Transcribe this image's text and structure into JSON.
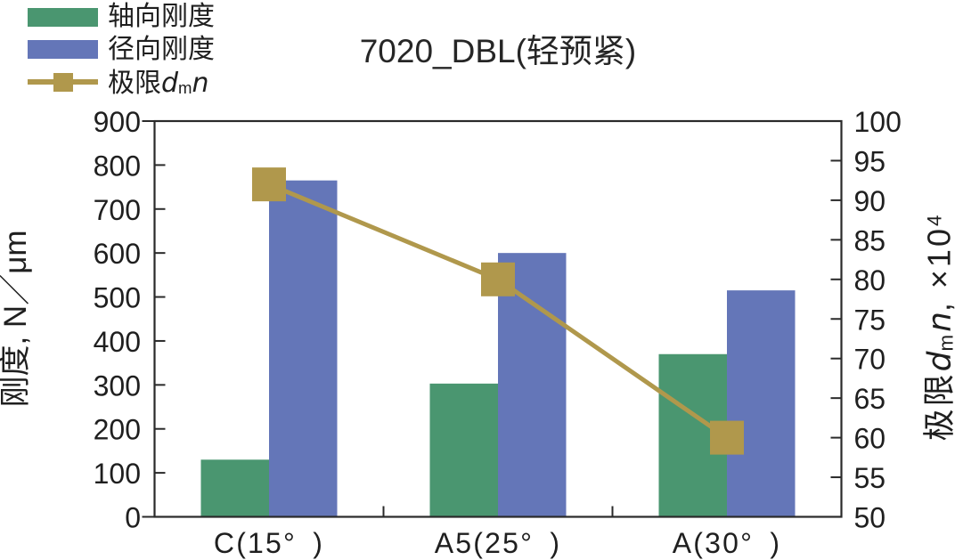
{
  "title": "7020_DBL(轻预紧)",
  "legend": {
    "items": [
      {
        "label": "轴向刚度",
        "swatch": "green-bar"
      },
      {
        "label": "径向刚度",
        "swatch": "blue-bar"
      },
      {
        "swatch": "olive-line-square-marker",
        "label_parts": {
          "prefix": "极限",
          "var_d": "d",
          "sub_m": "m",
          "var_n": "n"
        }
      }
    ]
  },
  "left_axis_label": "刚度, N／μm",
  "right_axis_label_parts": {
    "prefix": "极限",
    "var_d": "d",
    "sub_m": "m",
    "var_n": "n",
    "suffix": ", ×10",
    "sup": "4"
  },
  "colors": {
    "axial_bar": "#4a9670",
    "radial_bar": "#6476b8",
    "limit_line": "#b0984c",
    "axis": "#2a2a2a",
    "text": "#1f1f1f",
    "background": "#ffffff"
  },
  "chart_data": {
    "type": "bar",
    "title": "7020_DBL(轻预紧)",
    "categories": [
      "C(15°)",
      "A5(25°)",
      "A(30°)"
    ],
    "series": [
      {
        "name": "轴向刚度",
        "type": "bar",
        "axis": "left",
        "color": "#4a9670",
        "values": [
          130,
          303,
          370
        ]
      },
      {
        "name": "径向刚度",
        "type": "bar",
        "axis": "left",
        "color": "#6476b8",
        "values": [
          765,
          600,
          515
        ]
      },
      {
        "name": "极限dmn",
        "type": "line",
        "axis": "right",
        "color": "#b0984c",
        "marker": "square",
        "values": [
          92,
          80,
          60
        ]
      }
    ],
    "xlabel": "",
    "ylabel": "刚度, N／μm",
    "ylabel_right": "极限dmn, ×10⁴",
    "left_axis": {
      "min": 0,
      "max": 900,
      "tick_step": 100,
      "ticks": [
        0,
        100,
        200,
        300,
        400,
        500,
        600,
        700,
        800,
        900
      ]
    },
    "right_axis": {
      "min": 50,
      "max": 100,
      "tick_step": 5,
      "ticks": [
        50,
        55,
        60,
        65,
        70,
        75,
        80,
        85,
        90,
        95,
        100
      ]
    },
    "grid": false,
    "legend_position": "top-left"
  }
}
